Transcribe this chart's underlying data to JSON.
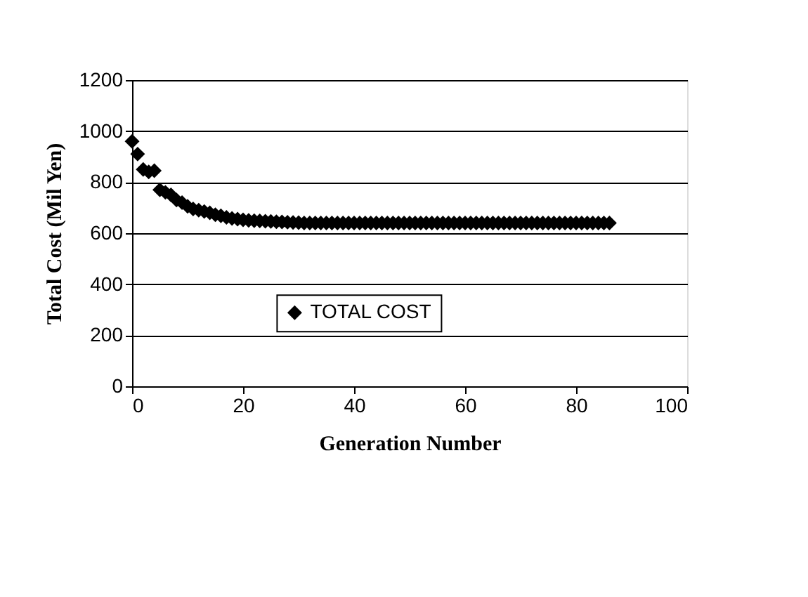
{
  "chart_data": {
    "type": "scatter",
    "xlabel": "Generation Number",
    "ylabel": "Total Cost (Mil Yen)",
    "x": [
      0,
      1,
      2,
      3,
      4,
      5,
      6,
      7,
      8,
      9,
      10,
      11,
      12,
      13,
      14,
      15,
      16,
      17,
      18,
      19,
      20,
      21,
      22,
      23,
      24,
      25,
      26,
      27,
      28,
      29,
      30,
      31,
      32,
      33,
      34,
      35,
      36,
      37,
      38,
      39,
      40,
      41,
      42,
      43,
      44,
      45,
      46,
      47,
      48,
      49,
      50,
      51,
      52,
      53,
      54,
      55,
      56,
      57,
      58,
      59,
      60,
      61,
      62,
      63,
      64,
      65,
      66,
      67,
      68,
      69,
      70,
      71,
      72,
      73,
      74,
      75,
      76,
      77,
      78,
      79,
      80,
      81,
      82,
      83,
      84,
      85,
      86
    ],
    "series": [
      {
        "name": "TOTAL COST",
        "color": "#000000",
        "values": [
          960,
          910,
          850,
          840,
          845,
          770,
          760,
          750,
          730,
          720,
          705,
          695,
          690,
          685,
          680,
          672,
          668,
          662,
          658,
          655,
          652,
          650,
          649,
          648,
          647,
          646,
          645,
          644,
          643,
          642,
          641,
          640,
          640,
          640,
          640,
          640,
          640,
          640,
          640,
          640,
          640,
          640,
          640,
          640,
          640,
          640,
          640,
          640,
          640,
          640,
          640,
          640,
          640,
          640,
          640,
          640,
          640,
          640,
          640,
          640,
          640,
          640,
          640,
          640,
          640,
          640,
          640,
          640,
          640,
          640,
          640,
          640,
          640,
          640,
          640,
          640,
          640,
          640,
          640,
          640,
          640,
          640,
          640,
          640,
          640,
          640,
          640
        ]
      }
    ],
    "xlim": [
      0,
      100
    ],
    "xticks": [
      0,
      20,
      40,
      60,
      80,
      100
    ],
    "ylim": [
      0,
      1200
    ],
    "yticks": [
      0,
      200,
      400,
      600,
      800,
      1000,
      1200
    ],
    "grid": "y",
    "legend": "bottom",
    "marker": "diamond"
  }
}
